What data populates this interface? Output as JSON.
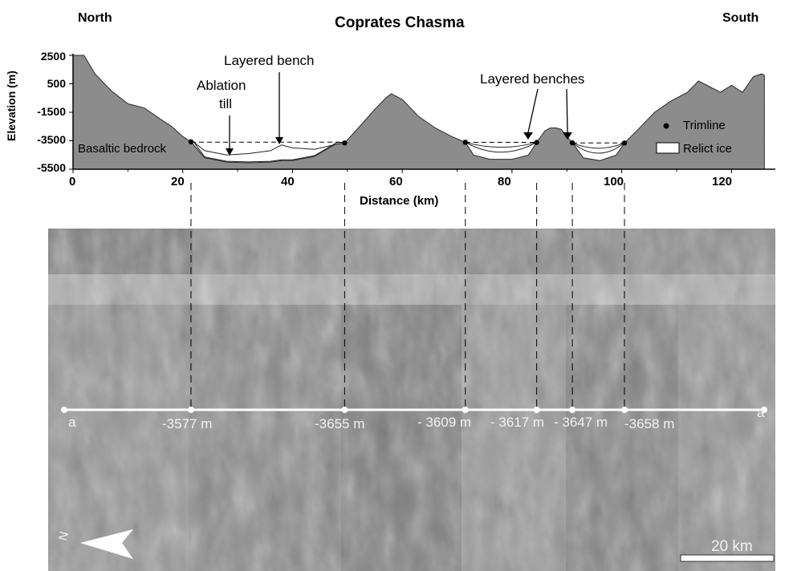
{
  "figure": {
    "title": "Coprates Chasma",
    "left_direction": "North",
    "right_direction": "South"
  },
  "profile": {
    "y_axis_label": "Elevation (m)",
    "x_axis_label": "Distance (km)",
    "y_ticks": [
      "2500",
      "500",
      "-1500",
      "-3500",
      "-5500"
    ],
    "x_ticks": [
      "0",
      "20",
      "40",
      "60",
      "80",
      "100",
      "120"
    ],
    "x_range_km": [
      0,
      128
    ],
    "y_range_m": [
      -5500,
      2500
    ],
    "annotations": {
      "basaltic_bedrock": "Basaltic bedrock",
      "ablation_till_1": "Ablation",
      "ablation_till_2": "till",
      "layered_bench": "Layered bench",
      "layered_benches": "Layered benches"
    },
    "legend": {
      "trimline": "Trimline",
      "relict_ice": "Relict ice"
    },
    "colors": {
      "bedrock": "#8c8c8c",
      "ice": "#ffffff",
      "background": "#ffffff"
    },
    "trimline_distances_km": [
      21.5,
      49.5,
      71.5,
      84.5,
      91,
      100.5
    ],
    "surface_profile": {
      "x": [
        0,
        2,
        4,
        7,
        10,
        13,
        16,
        18,
        20,
        21.5,
        24,
        28,
        32,
        36,
        38,
        40,
        44,
        48,
        49.5,
        52,
        55,
        57,
        58,
        60,
        63,
        66,
        69,
        71.5,
        73,
        76,
        80,
        83,
        84.5,
        86,
        87,
        88,
        89,
        90,
        91,
        93,
        96,
        99,
        100.5,
        103,
        106,
        109,
        112,
        114,
        116,
        118,
        120,
        122,
        124,
        125.5,
        126
      ],
      "y": [
        2500,
        2500,
        1200,
        0,
        -900,
        -1200,
        -2000,
        -2500,
        -3200,
        -3577,
        -4700,
        -5000,
        -5050,
        -5000,
        -4900,
        -4900,
        -4600,
        -3700,
        -3655,
        -2600,
        -1300,
        -500,
        -200,
        -600,
        -1800,
        -2600,
        -3200,
        -3609,
        -4500,
        -4800,
        -4800,
        -4500,
        -3617,
        -2800,
        -2600,
        -2600,
        -2700,
        -3200,
        -3647,
        -4700,
        -4900,
        -4500,
        -3658,
        -2700,
        -1500,
        -700,
        -100,
        700,
        300,
        -100,
        400,
        -100,
        1000,
        1200,
        1100
      ]
    },
    "ice_fill_top": {
      "x": [
        22,
        24,
        28,
        32,
        36,
        38,
        40,
        44,
        48,
        49.5
      ],
      "y": [
        -3590,
        -4200,
        -4500,
        -4400,
        -4200,
        -3800,
        -4000,
        -4100,
        -3750,
        -3650
      ]
    }
  },
  "map": {
    "start_label": "a",
    "end_label": "a'",
    "north_label": "N",
    "scale_bar_label": "20 km",
    "transect_elevations": [
      "-3577 m",
      "-3655 m",
      "- 3609 m",
      "- 3617 m",
      "- 3647 m",
      "-3658 m"
    ]
  }
}
